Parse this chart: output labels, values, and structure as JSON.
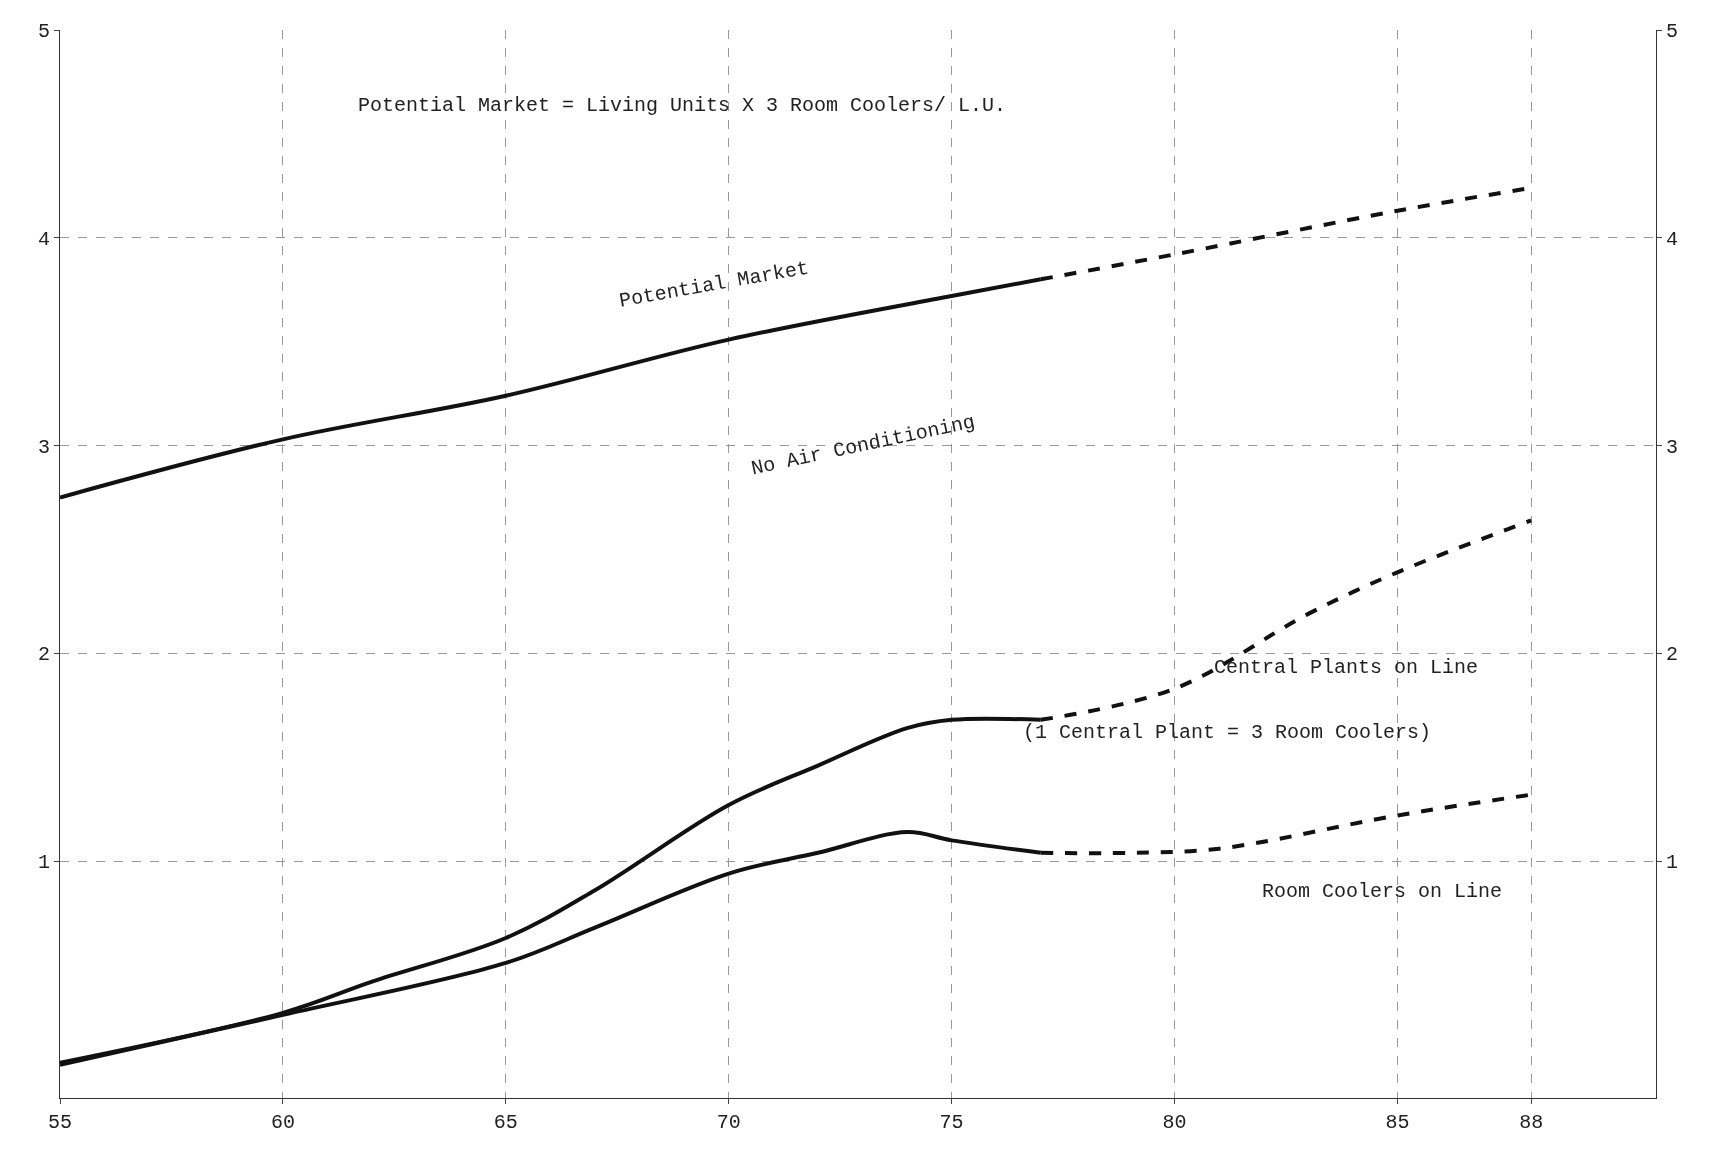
{
  "chart_data": {
    "type": "line",
    "series": [
      {
        "color": "#111111",
        "line_style": "solid",
        "x": [
          55,
          60,
          65,
          70,
          75,
          77
        ],
        "values": [
          2.75,
          3.03,
          3.24,
          3.51,
          3.72,
          3.8
        ]
      },
      {
        "color": "#111111",
        "line_style": "dashed",
        "x": [
          77,
          80,
          85,
          88
        ],
        "values": [
          3.8,
          3.92,
          4.13,
          4.24
        ]
      },
      {
        "color": "#111111",
        "line_style": "solid",
        "x": [
          55,
          60,
          62,
          65,
          67,
          70,
          72,
          74,
          75,
          77
        ],
        "values": [
          0.03,
          0.27,
          0.42,
          0.63,
          0.86,
          1.27,
          1.46,
          1.64,
          1.68,
          1.68
        ]
      },
      {
        "color": "#111111",
        "line_style": "dashed",
        "x": [
          77,
          80,
          83,
          85,
          88
        ],
        "values": [
          1.68,
          1.83,
          2.19,
          2.39,
          2.64
        ]
      },
      {
        "color": "#111111",
        "line_style": "solid",
        "x": [
          55,
          60,
          65,
          67,
          70,
          72,
          74,
          75,
          77
        ],
        "values": [
          0.02,
          0.26,
          0.51,
          0.68,
          0.94,
          1.04,
          1.14,
          1.1,
          1.04
        ]
      },
      {
        "color": "#111111",
        "line_style": "dashed",
        "x": [
          77,
          79,
          81,
          85,
          88
        ],
        "values": [
          1.04,
          1.04,
          1.06,
          1.22,
          1.32
        ]
      }
    ],
    "xlim": [
      55,
      90.8
    ],
    "xticks": [
      55,
      60,
      65,
      70,
      75,
      80,
      85,
      88
    ],
    "ylim": [
      -0.14,
      5
    ],
    "yticks": [
      1,
      2,
      3,
      4,
      5
    ],
    "y2lim": [
      -0.14,
      5
    ],
    "y2ticks": [
      1,
      2,
      3,
      4,
      5
    ],
    "grid": true,
    "marker": "none",
    "annotations": [
      "Potential Market = Living Units X 3 Room Coolers/ L.U.",
      "Potential Market",
      "No Air Conditioning",
      "Central Plants on Line",
      "(1 Central Plant = 3 Room Coolers)",
      "Room Coolers on Line"
    ]
  }
}
